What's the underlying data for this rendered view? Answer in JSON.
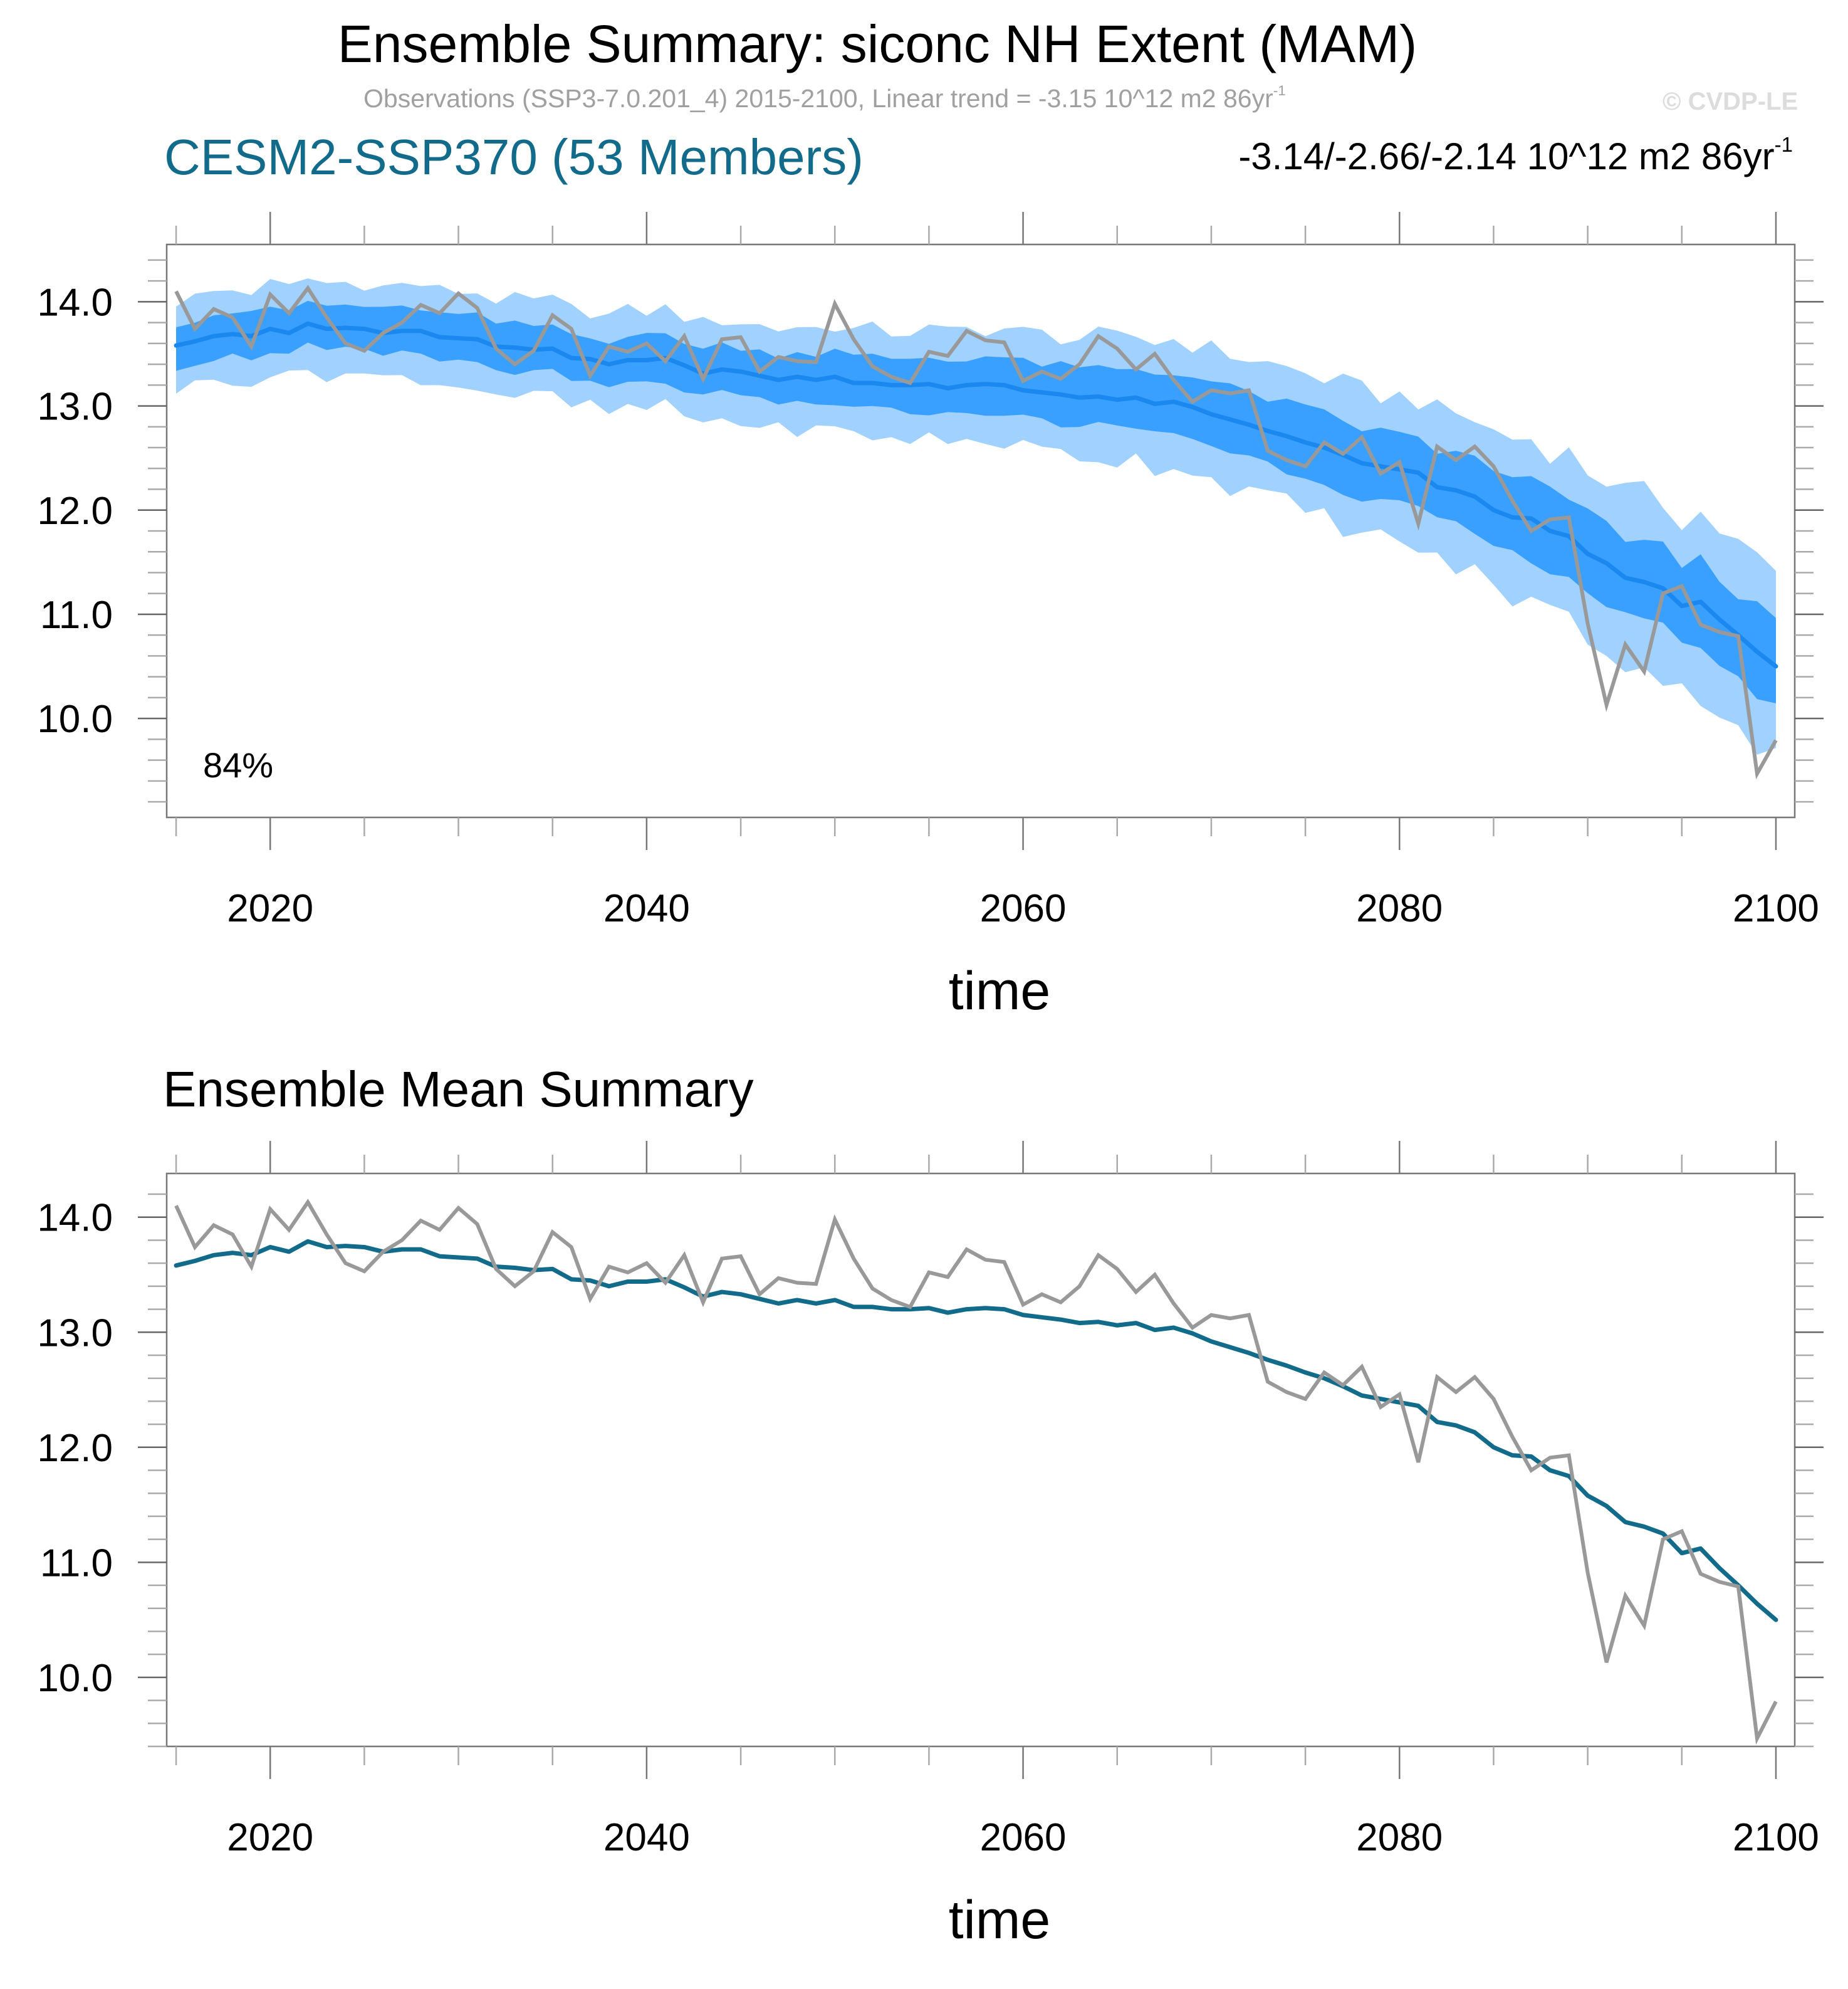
{
  "title": "Ensemble Summary: siconc NH Extent (MAM)",
  "subtitle": {
    "text": "Observations (SSP3-7.0.201_4) 2015-2100, Linear trend = -3.15 10^12 m2 86yr",
    "sup": "-1"
  },
  "copyright": "© CVDP-LE",
  "model_label": "CESM2-SSP370 (53 Members)",
  "trend_range": {
    "text": "-3.14/-2.66/-2.14 10^12 m2 86yr",
    "sup": "-1"
  },
  "percent_label": "84%",
  "panel2_title": "Ensemble Mean Summary",
  "colors": {
    "obs": "#999999",
    "mean_top": "#1a88ee",
    "mean_bottom": "#126b8a",
    "band_dark": "#39a0ff",
    "band_light": "#a0d1ff",
    "model_title": "#126b8a"
  },
  "chart_data": [
    {
      "type": "area",
      "title": "CESM2-SSP370 (53 Members)",
      "xlabel": "time",
      "ylabel": "",
      "xlim": [
        2014.5,
        2101
      ],
      "ylim": [
        9.05,
        14.55
      ],
      "xticks": [
        2020,
        2040,
        2060,
        2080,
        2100
      ],
      "yticks": [
        10.0,
        11.0,
        12.0,
        13.0,
        14.0
      ],
      "ytick_labels": [
        "10.0",
        "11.0",
        "12.0",
        "13.0",
        "14.0"
      ],
      "annotation": "84%",
      "legend": "none",
      "series": [
        {
          "name": "ensemble 10-90% range",
          "role": "band_outer",
          "half_width": [
            0.42,
            0.43,
            0.44,
            0.45,
            0.46,
            0.47,
            0.48,
            0.5,
            0.52,
            0.55,
            0.58,
            0.62,
            0.66,
            0.7,
            0.75,
            0.8,
            0.85,
            0.88
          ]
        },
        {
          "name": "ensemble 25-75% range",
          "role": "band_inner",
          "half_width": [
            0.21,
            0.21,
            0.22,
            0.22,
            0.23,
            0.23,
            0.24,
            0.25,
            0.26,
            0.27,
            0.28,
            0.3,
            0.32,
            0.34,
            0.36,
            0.38,
            0.4,
            0.42
          ]
        },
        {
          "name": "ensemble mean",
          "role": "mean"
        },
        {
          "name": "observations",
          "role": "obs"
        }
      ],
      "band_x": [
        2015,
        2020,
        2025,
        2030,
        2035,
        2040,
        2045,
        2050,
        2055,
        2060,
        2065,
        2070,
        2075,
        2080,
        2085,
        2090,
        2095,
        2100
      ]
    },
    {
      "type": "line",
      "title": "Ensemble Mean Summary",
      "xlabel": "time",
      "ylabel": "",
      "xlim": [
        2014.5,
        2101
      ],
      "ylim": [
        9.4,
        14.38
      ],
      "xticks": [
        2020,
        2040,
        2060,
        2080,
        2100
      ],
      "yticks": [
        10.0,
        11.0,
        12.0,
        13.0,
        14.0
      ],
      "ytick_labels": [
        "10.0",
        "11.0",
        "12.0",
        "13.0",
        "14.0"
      ],
      "legend": "none",
      "series": [
        {
          "name": "ensemble mean",
          "role": "mean"
        },
        {
          "name": "observations",
          "role": "obs"
        }
      ]
    }
  ],
  "x_years_start": 2015,
  "obs_values": [
    14.1,
    13.74,
    13.93,
    13.85,
    13.57,
    14.07,
    13.89,
    14.13,
    13.85,
    13.6,
    13.53,
    13.7,
    13.8,
    13.97,
    13.89,
    14.08,
    13.94,
    13.55,
    13.4,
    13.53,
    13.87,
    13.74,
    13.29,
    13.57,
    13.52,
    13.6,
    13.43,
    13.67,
    13.26,
    13.64,
    13.66,
    13.33,
    13.47,
    13.43,
    13.42,
    13.98,
    13.64,
    13.38,
    13.28,
    13.22,
    13.52,
    13.48,
    13.72,
    13.63,
    13.61,
    13.24,
    13.33,
    13.26,
    13.4,
    13.67,
    13.55,
    13.35,
    13.5,
    13.25,
    13.04,
    13.15,
    13.12,
    13.15,
    12.57,
    12.48,
    12.42,
    12.65,
    12.54,
    12.7,
    12.35,
    12.46,
    11.87,
    12.61,
    12.48,
    12.61,
    12.42,
    12.09,
    11.8,
    11.91,
    11.93,
    10.91,
    10.13,
    10.71,
    10.45,
    11.2,
    11.27,
    10.9,
    10.83,
    10.79,
    9.47,
    9.79
  ],
  "mean_values": [
    13.58,
    13.62,
    13.67,
    13.69,
    13.67,
    13.74,
    13.7,
    13.79,
    13.74,
    13.75,
    13.74,
    13.7,
    13.72,
    13.72,
    13.66,
    13.65,
    13.64,
    13.57,
    13.56,
    13.54,
    13.55,
    13.46,
    13.45,
    13.4,
    13.44,
    13.44,
    13.46,
    13.39,
    13.31,
    13.35,
    13.33,
    13.29,
    13.25,
    13.28,
    13.25,
    13.28,
    13.22,
    13.22,
    13.2,
    13.2,
    13.21,
    13.17,
    13.2,
    13.21,
    13.2,
    13.15,
    13.13,
    13.11,
    13.08,
    13.09,
    13.06,
    13.08,
    13.02,
    13.04,
    12.99,
    12.92,
    12.87,
    12.82,
    12.76,
    12.71,
    12.65,
    12.6,
    12.53,
    12.45,
    12.42,
    12.39,
    12.36,
    12.22,
    12.19,
    12.13,
    12.0,
    11.93,
    11.92,
    11.8,
    11.75,
    11.58,
    11.49,
    11.35,
    11.31,
    11.25,
    11.08,
    11.12,
    10.95,
    10.8,
    10.64,
    10.5
  ]
}
